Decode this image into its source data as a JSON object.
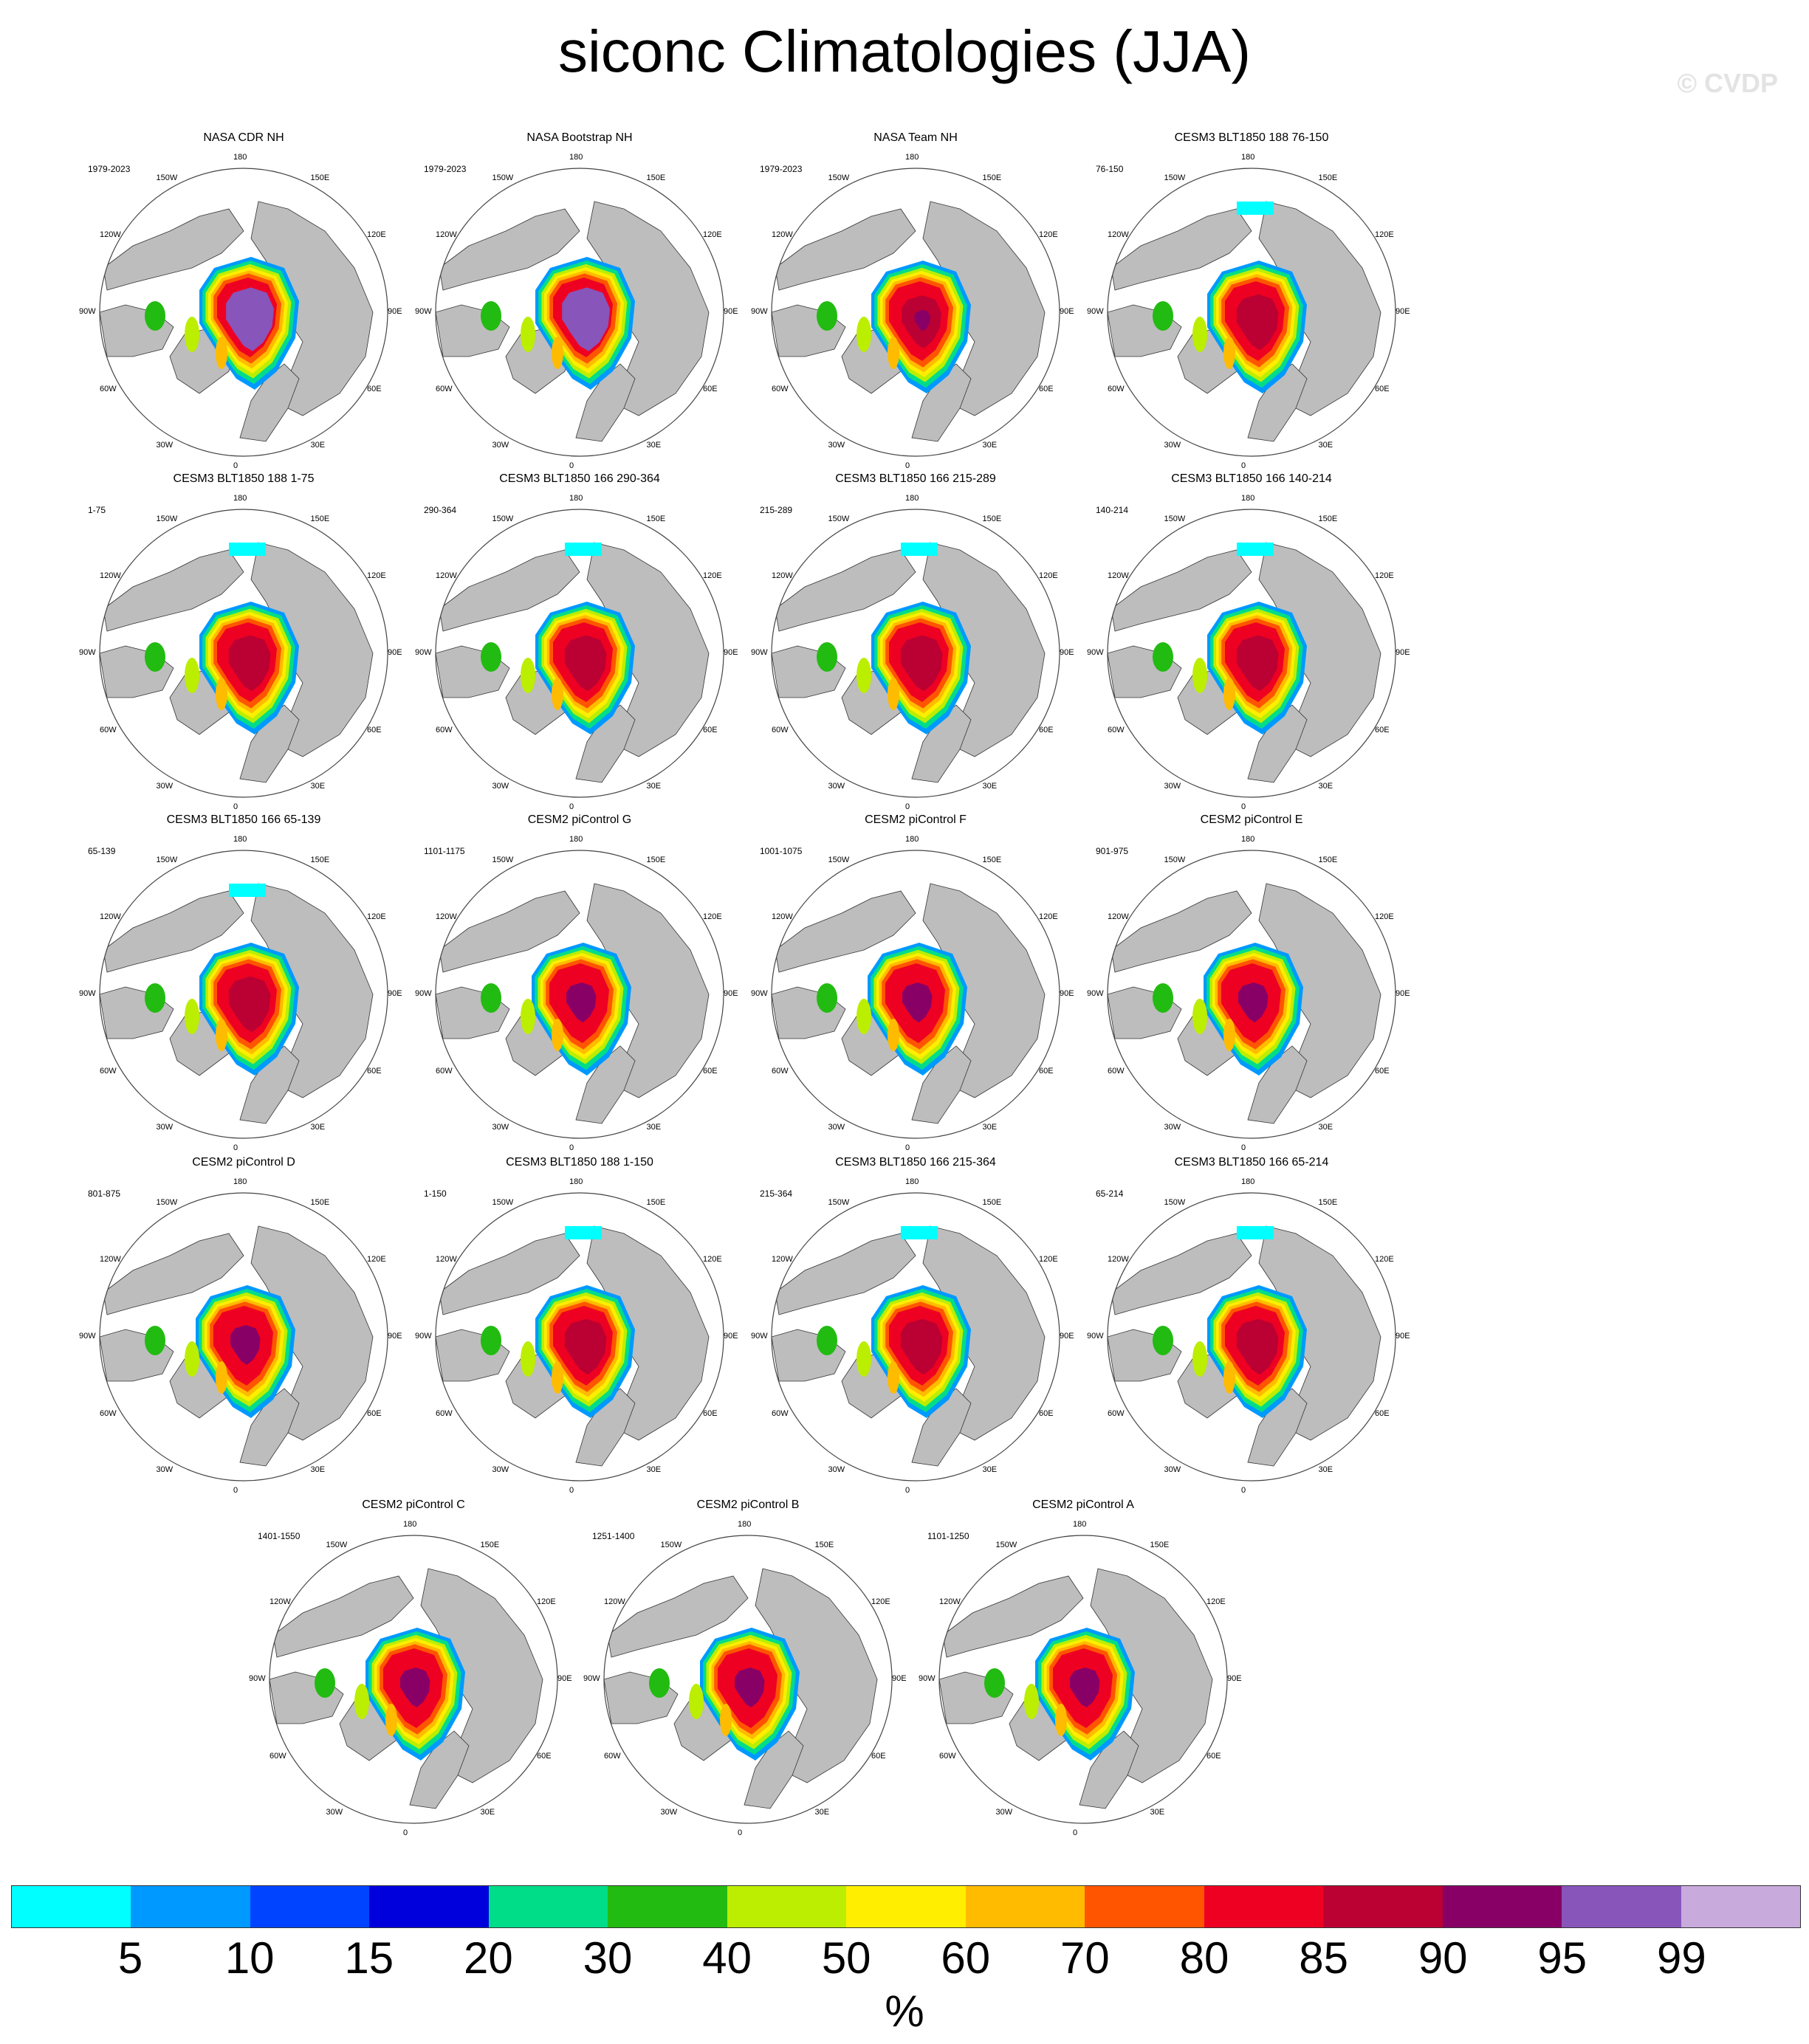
{
  "title": "siconc Climatologies (JJA)",
  "watermark": "© CVDP",
  "lon_labels": [
    "180",
    "150E",
    "120E",
    "90E",
    "60E",
    "30E",
    "0",
    "30W",
    "60W",
    "90W",
    "120W",
    "150W"
  ],
  "panels": [
    {
      "name": "NASA CDR NH",
      "period": "1979-2023",
      "variant": "obs_cdr"
    },
    {
      "name": "NASA Bootstrap NH",
      "period": "1979-2023",
      "variant": "obs_cdr"
    },
    {
      "name": "NASA Team NH",
      "period": "1979-2023",
      "variant": "obs_team"
    },
    {
      "name": "CESM3 BLT1850 188 76-150",
      "period": "76-150",
      "variant": "cesm3"
    },
    {
      "name": "CESM3 BLT1850 188 1-75",
      "period": "1-75",
      "variant": "cesm3"
    },
    {
      "name": "CESM3 BLT1850 166 290-364",
      "period": "290-364",
      "variant": "cesm3"
    },
    {
      "name": "CESM3 BLT1850 166 215-289",
      "period": "215-289",
      "variant": "cesm3"
    },
    {
      "name": "CESM3 BLT1850 166 140-214",
      "period": "140-214",
      "variant": "cesm3"
    },
    {
      "name": "CESM3 BLT1850 166 65-139",
      "period": "65-139",
      "variant": "cesm3"
    },
    {
      "name": "CESM2 piControl G",
      "period": "1101-1175",
      "variant": "cesm2"
    },
    {
      "name": "CESM2 piControl F",
      "period": "1001-1075",
      "variant": "cesm2"
    },
    {
      "name": "CESM2 piControl E",
      "period": "901-975",
      "variant": "cesm2"
    },
    {
      "name": "CESM2 piControl D",
      "period": "801-875",
      "variant": "cesm2"
    },
    {
      "name": "CESM3 BLT1850 188 1-150",
      "period": "1-150",
      "variant": "cesm3"
    },
    {
      "name": "CESM3 BLT1850 166 215-364",
      "period": "215-364",
      "variant": "cesm3"
    },
    {
      "name": "CESM3 BLT1850 166 65-214",
      "period": "65-214",
      "variant": "cesm3"
    },
    {
      "name": "CESM2 piControl C",
      "period": "1401-1550",
      "variant": "cesm2"
    },
    {
      "name": "CESM2 piControl B",
      "period": "1251-1400",
      "variant": "cesm2"
    },
    {
      "name": "CESM2 piControl A",
      "period": "1101-1250",
      "variant": "cesm2"
    }
  ],
  "colorbar": {
    "colors": [
      "#00ffff",
      "#0099ff",
      "#0044ff",
      "#0000dd",
      "#00dd88",
      "#22bb11",
      "#bbee00",
      "#ffee00",
      "#ffbb00",
      "#ff5500",
      "#ee0022",
      "#bb0033",
      "#880066",
      "#8855bb",
      "#c8aadd"
    ],
    "labels": [
      "5",
      "10",
      "15",
      "20",
      "30",
      "40",
      "50",
      "60",
      "70",
      "80",
      "85",
      "90",
      "95",
      "99"
    ],
    "units": "%"
  },
  "land_color": "#bdbdbd"
}
